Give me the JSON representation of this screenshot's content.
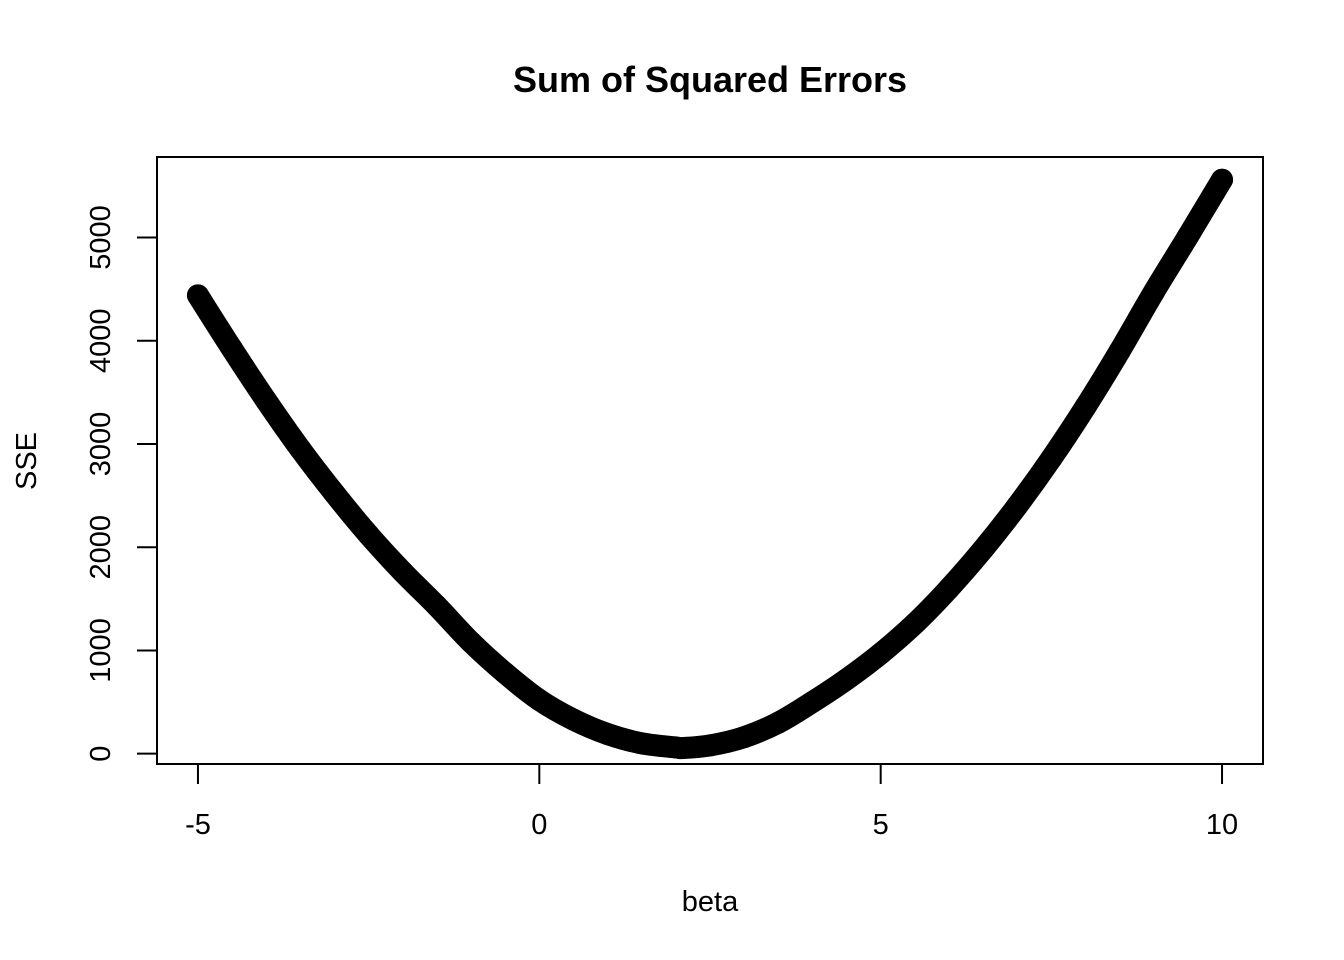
{
  "chart_data": {
    "type": "line",
    "title": "Sum of Squared Errors",
    "xlabel": "beta",
    "ylabel": "SSE",
    "xlim": [
      -5.6,
      10.6
    ],
    "ylim": [
      -100,
      5780
    ],
    "x_ticks": [
      {
        "value": -5,
        "label": "-5"
      },
      {
        "value": 0,
        "label": "0"
      },
      {
        "value": 5,
        "label": "5"
      },
      {
        "value": 10,
        "label": "10"
      }
    ],
    "y_ticks": [
      {
        "value": 0,
        "label": "0"
      },
      {
        "value": 1000,
        "label": "1000"
      },
      {
        "value": 2000,
        "label": "2000"
      },
      {
        "value": 3000,
        "label": "3000"
      },
      {
        "value": 4000,
        "label": "4000"
      },
      {
        "value": 5000,
        "label": "5000"
      }
    ],
    "grid": false,
    "series": [
      {
        "color": "#000000",
        "x": [
          -5,
          -4.5,
          -4,
          -3.5,
          -3,
          -2.5,
          -2,
          -1.5,
          -1,
          -0.5,
          0,
          0.5,
          1,
          1.5,
          2,
          2.1,
          2.5,
          3,
          3.5,
          4,
          4.5,
          5,
          5.5,
          6,
          6.5,
          7,
          7.5,
          8,
          8.5,
          9,
          9.5,
          10
        ],
        "y": [
          4440,
          3920,
          3420,
          2950,
          2520,
          2120,
          1760,
          1430,
          1080,
          780,
          520,
          330,
          190,
          100,
          60,
          55,
          80,
          160,
          300,
          500,
          720,
          970,
          1260,
          1600,
          1980,
          2400,
          2860,
          3360,
          3900,
          4470,
          5010,
          5560
        ]
      }
    ]
  }
}
